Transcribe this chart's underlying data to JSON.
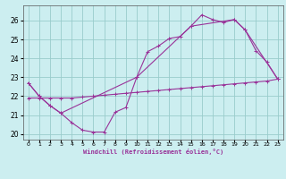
{
  "xlabel": "Windchill (Refroidissement éolien,°C)",
  "bg_color": "#cceef0",
  "line_color": "#993399",
  "grid_color": "#99cccc",
  "xlim": [
    -0.5,
    23.5
  ],
  "ylim": [
    19.7,
    26.8
  ],
  "yticks": [
    20,
    21,
    22,
    23,
    24,
    25,
    26
  ],
  "xticks": [
    0,
    1,
    2,
    3,
    4,
    5,
    6,
    7,
    8,
    9,
    10,
    11,
    12,
    13,
    14,
    15,
    16,
    17,
    18,
    19,
    20,
    21,
    22,
    23
  ],
  "line1_x": [
    0,
    1,
    2,
    3,
    4,
    5,
    6,
    7,
    8,
    9,
    10,
    11,
    12,
    13,
    14,
    15,
    16,
    17,
    18,
    19,
    20,
    21,
    22,
    23
  ],
  "line1_y": [
    22.7,
    22.0,
    21.5,
    21.1,
    20.6,
    20.2,
    20.1,
    20.1,
    21.15,
    21.4,
    23.0,
    24.35,
    24.65,
    25.05,
    25.15,
    25.7,
    26.3,
    26.05,
    25.9,
    26.05,
    25.5,
    24.4,
    23.8,
    22.9
  ],
  "line2_x": [
    0,
    1,
    2,
    3,
    10,
    15,
    19,
    20,
    23
  ],
  "line2_y": [
    22.7,
    22.0,
    21.5,
    21.1,
    23.0,
    25.7,
    26.05,
    25.5,
    22.9
  ],
  "line3_x": [
    0,
    1,
    2,
    3,
    4,
    5,
    6,
    7,
    8,
    9,
    10,
    11,
    12,
    13,
    14,
    15,
    16,
    17,
    18,
    19,
    20,
    21,
    22,
    23
  ],
  "line3_y": [
    21.9,
    21.9,
    21.9,
    21.9,
    21.9,
    21.95,
    22.0,
    22.05,
    22.1,
    22.15,
    22.2,
    22.25,
    22.3,
    22.35,
    22.4,
    22.45,
    22.5,
    22.55,
    22.6,
    22.65,
    22.7,
    22.75,
    22.8,
    22.9
  ]
}
